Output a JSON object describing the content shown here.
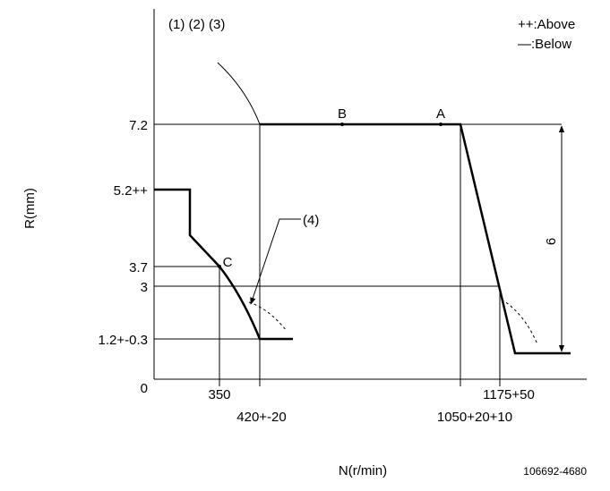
{
  "header": {
    "notes": "(1) (2) (3)",
    "legend": [
      "++:Above",
      "—:Below"
    ]
  },
  "axes": {
    "y_label": "R(mm)",
    "x_label": "N(r/min)",
    "origin": "0",
    "y_ticks": [
      "7.2",
      "5.2++",
      "3.7",
      "3",
      "1.2+-0.3"
    ],
    "x_ticks": [
      "350",
      "420+-20",
      "1050+20+10",
      "1175+50"
    ]
  },
  "points": [
    "B",
    "A",
    "C"
  ],
  "callout": "(4)",
  "dimension": "6",
  "footer": {
    "code": "106692-4680"
  }
}
